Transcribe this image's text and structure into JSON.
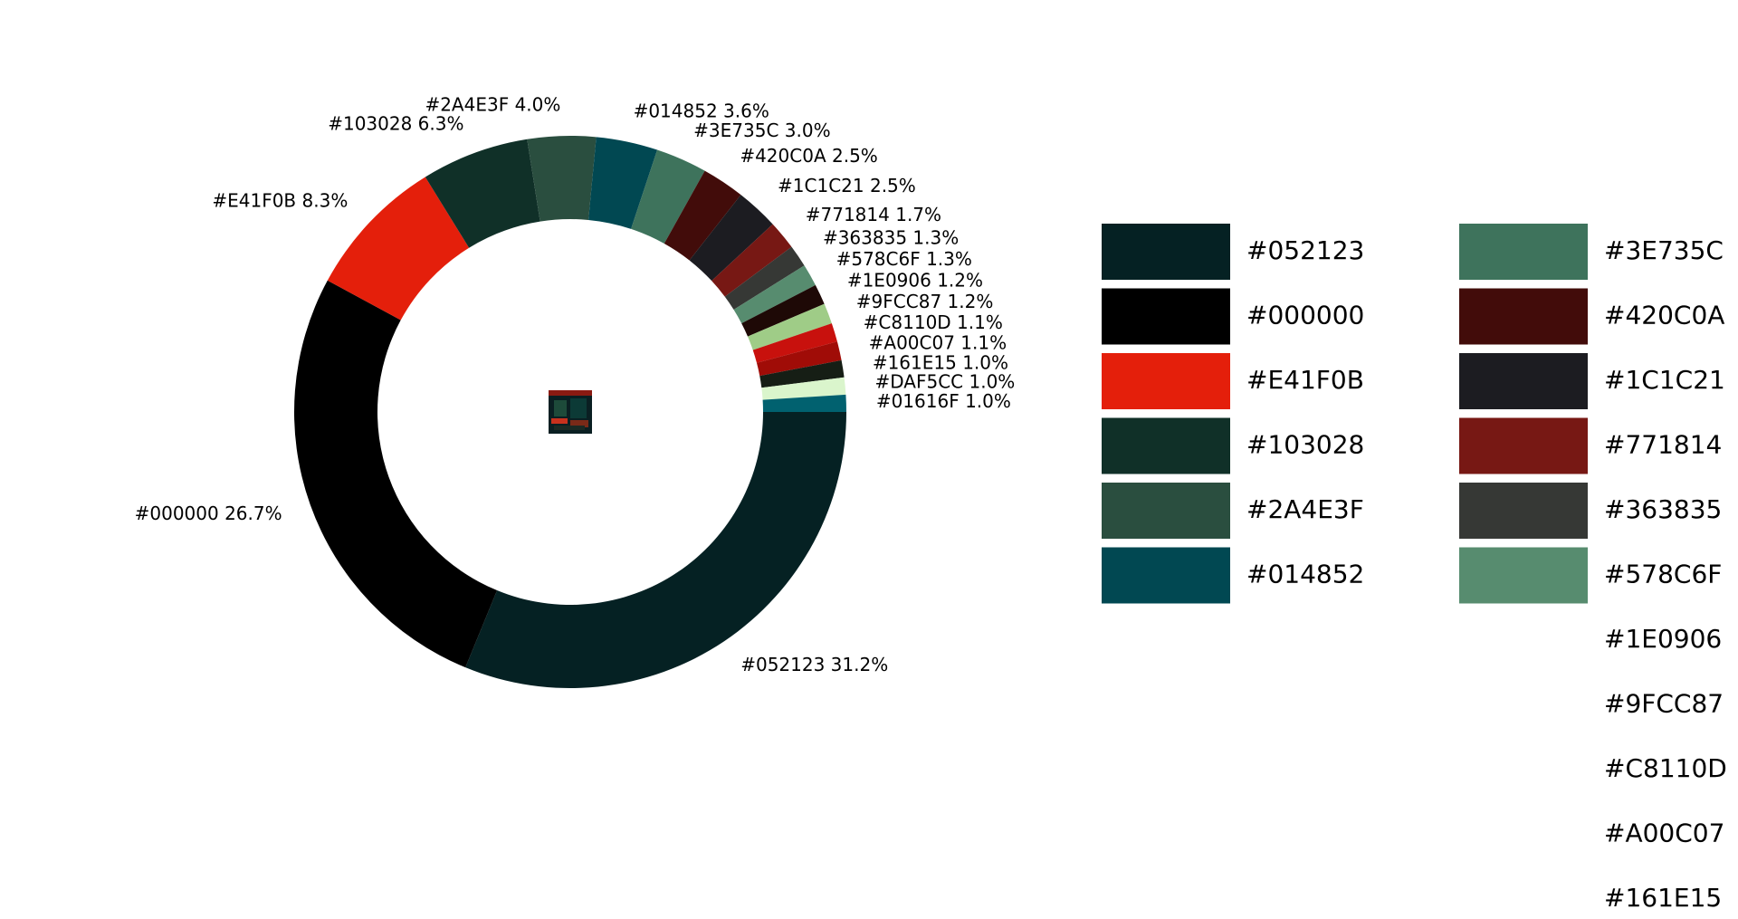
{
  "chart_data": {
    "type": "pie",
    "donut": true,
    "start_angle_deg": 0,
    "direction": "clockwise",
    "slices": [
      {
        "label": "#052123",
        "color": "#052123",
        "value": 31.2,
        "text": "#052123 31.2%"
      },
      {
        "label": "#000000",
        "color": "#000000",
        "value": 26.7,
        "text": "#000000 26.7%"
      },
      {
        "label": "#E41F0B",
        "color": "#E41F0B",
        "value": 8.3,
        "text": "#E41F0B 8.3%"
      },
      {
        "label": "#103028",
        "color": "#103028",
        "value": 6.3,
        "text": "#103028 6.3%"
      },
      {
        "label": "#2A4E3F",
        "color": "#2A4E3F",
        "value": 4.0,
        "text": "#2A4E3F 4.0%"
      },
      {
        "label": "#014852",
        "color": "#014852",
        "value": 3.6,
        "text": "#014852 3.6%"
      },
      {
        "label": "#3E735C",
        "color": "#3E735C",
        "value": 3.0,
        "text": "#3E735C 3.0%"
      },
      {
        "label": "#420C0A",
        "color": "#420C0A",
        "value": 2.5,
        "text": "#420C0A 2.5%"
      },
      {
        "label": "#1C1C21",
        "color": "#1C1C21",
        "value": 2.5,
        "text": "#1C1C21 2.5%"
      },
      {
        "label": "#771814",
        "color": "#771814",
        "value": 1.7,
        "text": "#771814 1.7%"
      },
      {
        "label": "#363835",
        "color": "#363835",
        "value": 1.3,
        "text": "#363835 1.3%"
      },
      {
        "label": "#578C6F",
        "color": "#578C6F",
        "value": 1.3,
        "text": "#578C6F 1.3%"
      },
      {
        "label": "#1E0906",
        "color": "#1E0906",
        "value": 1.2,
        "text": "#1E0906 1.2%"
      },
      {
        "label": "#9FCC87",
        "color": "#9FCC87",
        "value": 1.2,
        "text": "#9FCC87 1.2%"
      },
      {
        "label": "#C8110D",
        "color": "#C8110D",
        "value": 1.1,
        "text": "#C8110D 1.1%"
      },
      {
        "label": "#A00C07",
        "color": "#A00C07",
        "value": 1.1,
        "text": "#A00C07 1.1%"
      },
      {
        "label": "#161E15",
        "color": "#161E15",
        "value": 1.0,
        "text": "#161E15 1.0%"
      },
      {
        "label": "#DAF5CC",
        "color": "#DAF5CC",
        "value": 1.0,
        "text": "#DAF5CC 1.0%"
      },
      {
        "label": "#01616F",
        "color": "#01616F",
        "value": 1.0,
        "text": "#01616F 1.0%"
      }
    ],
    "legend": {
      "placement": "right",
      "columns": 2,
      "entries": [
        "#052123",
        "#000000",
        "#E41F0B",
        "#103028",
        "#2A4E3F",
        "#014852",
        "#3E735C",
        "#420C0A",
        "#1C1C21",
        "#771814",
        "#363835",
        "#578C6F",
        "#1E0906",
        "#9FCC87",
        "#C8110D",
        "#A00C07",
        "#161E15"
      ],
      "swatches_shown": 12
    },
    "center_thumbnail": true
  }
}
